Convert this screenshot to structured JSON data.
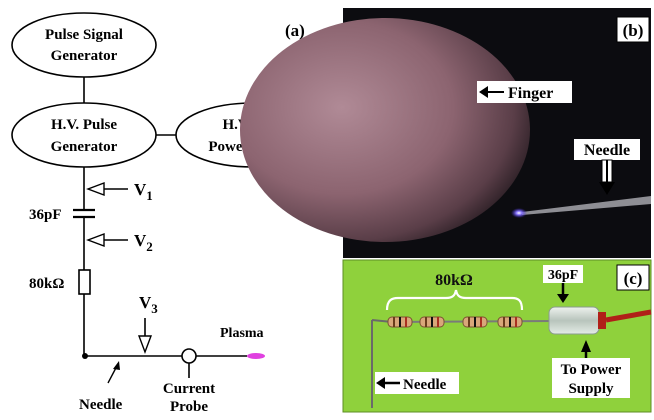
{
  "panel_a": {
    "label": "(a)",
    "pulse_signal_generator": [
      "Pulse Signal",
      "Generator"
    ],
    "hv_pulse_generator": [
      "H.V. Pulse",
      "Generator"
    ],
    "hv_dc_power_supply": [
      "H.V.   DC",
      "Power Supply"
    ],
    "v1_main": "V",
    "v1_sub": "1",
    "v2_main": "V",
    "v2_sub": "2",
    "v3_main": "V",
    "v3_sub": "3",
    "capacitor_label": "36pF",
    "resistor_label": "80kΩ",
    "plasma_label": "Plasma",
    "needle_label": "Needle",
    "current_probe_label": [
      "Current",
      "Probe"
    ]
  },
  "panel_b": {
    "label": "(b)",
    "finger_label": "Finger",
    "needle_label": "Needle"
  },
  "panel_c": {
    "label": "(c)",
    "resistor_label": "80kΩ",
    "capacitor_label": "36pF",
    "needle_label": "Needle",
    "power_supply_label": [
      "To Power",
      "Supply"
    ]
  },
  "colors": {
    "plasma": "#e040e0",
    "photo_b_bg": "#0c0c10",
    "photo_c_bg": "#8fd13c",
    "arc": "#7a5cff"
  }
}
